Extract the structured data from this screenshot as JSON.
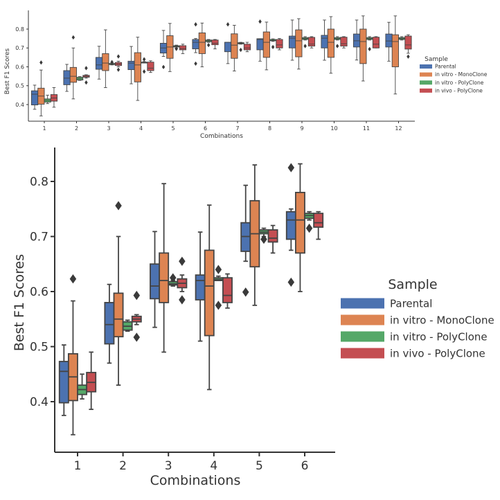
{
  "chart_data": [
    {
      "type": "box",
      "xlabel": "Combinations",
      "ylabel": "Best F1 Scores",
      "ylim": [
        0.33,
        0.89
      ],
      "yticks": [
        0.4,
        0.5,
        0.6,
        0.7,
        0.8
      ],
      "categories": [
        "1",
        "2",
        "3",
        "4",
        "5",
        "6",
        "7",
        "8",
        "9",
        "10",
        "11",
        "12"
      ],
      "legend": {
        "title": "Sample",
        "placement": "right"
      },
      "series": [
        {
          "name": "Parental",
          "color": "#4c72b0",
          "boxes": [
            [
              0.375,
              0.398,
              0.455,
              0.473,
              0.503,
              []
            ],
            [
              0.47,
              0.505,
              0.54,
              0.58,
              0.613,
              []
            ],
            [
              0.535,
              0.587,
              0.61,
              0.65,
              0.709,
              []
            ],
            [
              0.51,
              0.585,
              0.62,
              0.63,
              0.708,
              []
            ],
            [
              0.655,
              0.673,
              0.7,
              0.725,
              0.793,
              [
                0.599
              ]
            ],
            [
              0.675,
              0.695,
              0.73,
              0.745,
              0.75,
              [
                0.617,
                0.825
              ]
            ],
            [
              0.617,
              0.68,
              0.73,
              0.73,
              0.73,
              [
                0.825
              ]
            ],
            [
              0.63,
              0.69,
              0.745,
              0.749,
              0.749,
              [
                0.84
              ]
            ],
            [
              0.635,
              0.7,
              0.752,
              0.763,
              0.848,
              []
            ],
            [
              0.635,
              0.7,
              0.752,
              0.767,
              0.848,
              []
            ],
            [
              0.636,
              0.705,
              0.738,
              0.774,
              0.848,
              []
            ],
            [
              0.63,
              0.705,
              0.737,
              0.774,
              0.836,
              []
            ]
          ]
        },
        {
          "name": "in vitro - MonoClone",
          "color": "#dd8452",
          "boxes": [
            [
              0.34,
              0.402,
              0.445,
              0.487,
              0.583,
              [
                0.623
              ]
            ],
            [
              0.43,
              0.518,
              0.55,
              0.597,
              0.7,
              [
                0.756
              ]
            ],
            [
              0.49,
              0.58,
              0.62,
              0.67,
              0.796,
              []
            ],
            [
              0.422,
              0.52,
              0.61,
              0.675,
              0.757,
              []
            ],
            [
              0.575,
              0.645,
              0.705,
              0.765,
              0.83,
              []
            ],
            [
              0.6,
              0.67,
              0.73,
              0.78,
              0.832,
              []
            ],
            [
              0.578,
              0.645,
              0.715,
              0.775,
              0.82,
              []
            ],
            [
              0.584,
              0.65,
              0.73,
              0.785,
              0.837,
              []
            ],
            [
              0.588,
              0.653,
              0.738,
              0.796,
              0.855,
              []
            ],
            [
              0.566,
              0.65,
              0.73,
              0.8,
              0.866,
              []
            ],
            [
              0.525,
              0.617,
              0.734,
              0.8,
              0.87,
              []
            ],
            [
              0.456,
              0.6,
              0.734,
              0.77,
              0.87,
              []
            ]
          ]
        },
        {
          "name": "in vitro - PolyClone",
          "color": "#55a868",
          "boxes": [
            [
              0.405,
              0.413,
              0.422,
              0.43,
              0.45,
              []
            ],
            [
              0.528,
              0.53,
              0.537,
              0.545,
              0.548,
              []
            ],
            [
              0.61,
              0.612,
              0.614,
              0.618,
              0.62,
              [
                0.625
              ]
            ],
            [
              0.62,
              0.62,
              0.622,
              0.625,
              0.628,
              [
                0.575,
                0.64
              ]
            ],
            [
              0.7,
              0.705,
              0.708,
              0.712,
              0.715,
              [
                0.695
              ]
            ],
            [
              0.73,
              0.733,
              0.738,
              0.742,
              0.745,
              [
                0.715
              ]
            ],
            [
              0.72,
              0.722,
              0.725,
              0.728,
              0.73,
              [
                0.69
              ]
            ],
            [
              0.735,
              0.738,
              0.74,
              0.745,
              0.748,
              [
                0.705
              ]
            ],
            [
              0.742,
              0.745,
              0.75,
              0.755,
              0.76,
              [
                0.71
              ]
            ],
            [
              0.742,
              0.745,
              0.75,
              0.755,
              0.76,
              [
                0.71
              ]
            ],
            [
              0.742,
              0.745,
              0.75,
              0.755,
              0.76,
              [
                0.694
              ]
            ],
            [
              0.742,
              0.745,
              0.75,
              0.755,
              0.76,
              []
            ]
          ]
        },
        {
          "name": "in vivo - PolyClone",
          "color": "#c44e52",
          "boxes": [
            [
              0.386,
              0.418,
              0.435,
              0.453,
              0.49,
              []
            ],
            [
              0.54,
              0.545,
              0.55,
              0.555,
              0.558,
              [
                0.517,
                0.593
              ]
            ],
            [
              0.6,
              0.607,
              0.615,
              0.623,
              0.63,
              [
                0.585,
                0.655
              ]
            ],
            [
              0.57,
              0.58,
              0.593,
              0.625,
              0.632,
              []
            ],
            [
              0.67,
              0.69,
              0.697,
              0.712,
              0.72,
              []
            ],
            [
              0.695,
              0.717,
              0.725,
              0.742,
              0.745,
              []
            ],
            [
              0.68,
              0.69,
              0.7,
              0.72,
              0.73,
              []
            ],
            [
              0.69,
              0.7,
              0.716,
              0.745,
              0.75,
              []
            ],
            [
              0.7,
              0.71,
              0.72,
              0.756,
              0.76,
              []
            ],
            [
              0.7,
              0.71,
              0.722,
              0.757,
              0.76,
              []
            ],
            [
              0.7,
              0.7,
              0.72,
              0.757,
              0.76,
              []
            ],
            [
              0.672,
              0.694,
              0.716,
              0.763,
              0.77,
              [
                0.654
              ]
            ]
          ]
        }
      ]
    },
    {
      "type": "box",
      "xlabel": "Combinations",
      "ylabel": "Best F1 Scores",
      "ylim": [
        0.33,
        0.89
      ],
      "yticks": [
        0.4,
        0.5,
        0.6,
        0.7,
        0.8
      ],
      "categories": [
        "1",
        "2",
        "3",
        "4",
        "5",
        "6"
      ],
      "legend": {
        "title": "Sample",
        "placement": "right"
      },
      "series_ref": "same data as first chart, combinations 1-6"
    }
  ]
}
